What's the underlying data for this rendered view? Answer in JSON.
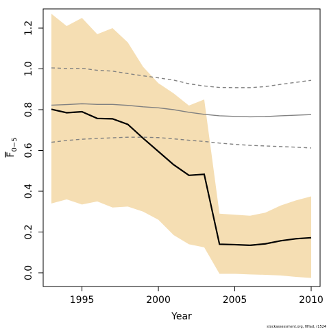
{
  "chart_data": {
    "type": "line",
    "xlabel": "Year",
    "ylabel_main": "F",
    "ylabel_sub": "0−5",
    "xlim": [
      1992.4,
      2010.6
    ],
    "ylim": [
      -0.07,
      1.32
    ],
    "x_ticks": [
      1995,
      2000,
      2005,
      2010
    ],
    "x_tick_labels": [
      "1995",
      "2000",
      "2005",
      "2010"
    ],
    "y_ticks": [
      0.0,
      0.2,
      0.4,
      0.6,
      0.8,
      1.0,
      1.2
    ],
    "y_tick_labels": [
      "0.0",
      "0.2",
      "0.4",
      "0.6",
      "0.8",
      "1.0",
      "1.2"
    ],
    "grid": false,
    "x": [
      1993,
      1994,
      1995,
      1996,
      1997,
      1998,
      1999,
      2000,
      2001,
      2002,
      2003,
      2004,
      2005,
      2006,
      2007,
      2008,
      2009,
      2010
    ],
    "series": [
      {
        "role": "band",
        "color": "#f5deb3",
        "lower": [
          0.34,
          0.36,
          0.335,
          0.35,
          0.32,
          0.325,
          0.3,
          0.26,
          0.185,
          0.14,
          0.125,
          -0.005,
          -0.005,
          -0.008,
          -0.01,
          -0.013,
          -0.02,
          -0.025
        ],
        "upper": [
          1.27,
          1.21,
          1.25,
          1.17,
          1.2,
          1.13,
          1.01,
          0.93,
          0.88,
          0.82,
          0.85,
          0.29,
          0.285,
          0.28,
          0.295,
          0.33,
          0.355,
          0.375
        ]
      },
      {
        "role": "estimate",
        "color": "#000000",
        "values": [
          0.802,
          0.785,
          0.79,
          0.757,
          0.755,
          0.728,
          0.66,
          0.595,
          0.53,
          0.478,
          0.483,
          0.14,
          0.138,
          0.135,
          0.142,
          0.157,
          0.167,
          0.172
        ]
      },
      {
        "role": "median",
        "color": "#808080",
        "values": [
          0.822,
          0.825,
          0.829,
          0.826,
          0.826,
          0.821,
          0.814,
          0.809,
          0.8,
          0.787,
          0.777,
          0.77,
          0.767,
          0.765,
          0.766,
          0.77,
          0.773,
          0.776
        ]
      },
      {
        "role": "upper-dashed",
        "color": "#808080",
        "values": [
          1.005,
          1.002,
          1.003,
          0.993,
          0.989,
          0.977,
          0.966,
          0.956,
          0.945,
          0.927,
          0.916,
          0.909,
          0.908,
          0.908,
          0.913,
          0.924,
          0.934,
          0.944
        ]
      },
      {
        "role": "lower-dashed",
        "color": "#808080",
        "values": [
          0.64,
          0.649,
          0.655,
          0.659,
          0.662,
          0.665,
          0.665,
          0.663,
          0.657,
          0.65,
          0.644,
          0.636,
          0.63,
          0.625,
          0.622,
          0.619,
          0.616,
          0.612
        ]
      }
    ]
  },
  "credit": "stockassessment.org, fiHad, r1524"
}
